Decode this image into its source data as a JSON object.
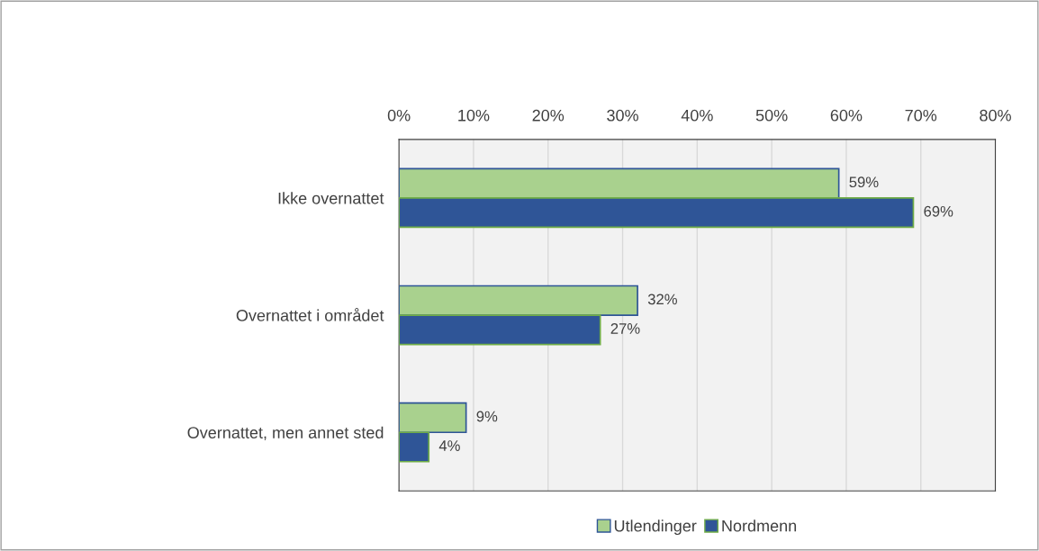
{
  "chart_data": {
    "type": "bar",
    "orientation": "horizontal",
    "categories": [
      "Ikke overnattet",
      "Overnattet i området",
      "Overnattet, men annet sted"
    ],
    "series": [
      {
        "name": "Utlendinger",
        "color": "#a9d18e",
        "values": [
          59,
          32,
          9
        ],
        "value_labels": [
          "59%",
          "32%",
          "9%"
        ]
      },
      {
        "name": "Nordmenn",
        "color": "#2f5597",
        "values": [
          69,
          27,
          4
        ],
        "value_labels": [
          "69%",
          "27%",
          "4%"
        ]
      }
    ],
    "xlim": [
      0,
      80
    ],
    "xticks": [
      {
        "value": 0,
        "label": "0%"
      },
      {
        "value": 10,
        "label": "10%"
      },
      {
        "value": 20,
        "label": "20%"
      },
      {
        "value": 30,
        "label": "30%"
      },
      {
        "value": 40,
        "label": "40%"
      },
      {
        "value": 50,
        "label": "50%"
      },
      {
        "value": 60,
        "label": "60%"
      },
      {
        "value": 70,
        "label": "70%"
      },
      {
        "value": 80,
        "label": "80%"
      }
    ],
    "grid": "x",
    "legend": "bottom"
  }
}
